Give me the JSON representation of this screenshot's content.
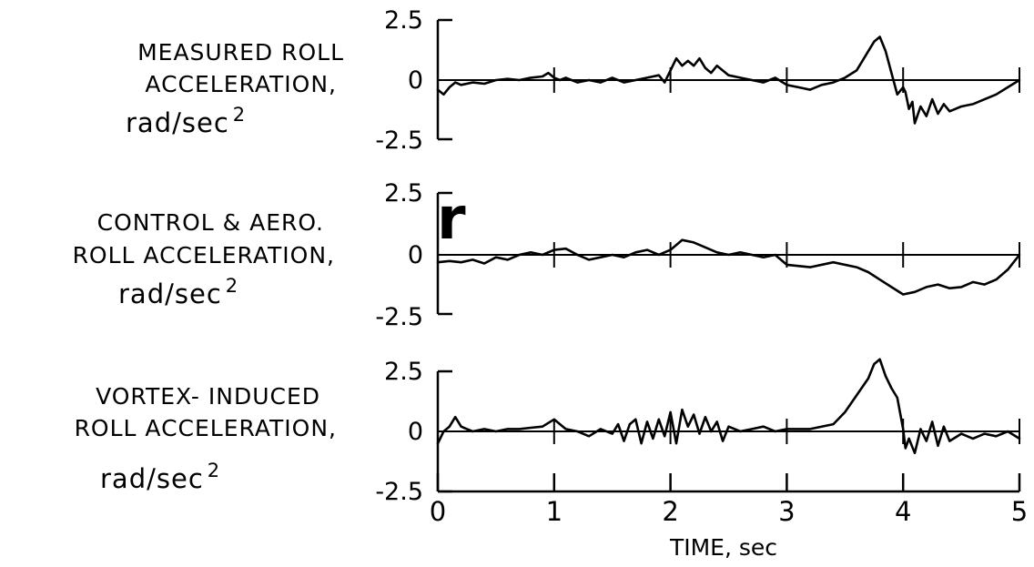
{
  "chart_data": [
    {
      "type": "line",
      "panel": "measured",
      "label_lines": [
        "MEASURED ROLL",
        "ACCELERATION,"
      ],
      "unit": "rad/sec",
      "unit_exponent": "2",
      "yticks": [
        "2.5",
        "0",
        "-2.5"
      ],
      "ylim": [
        -2.5,
        2.5
      ],
      "xlim": [
        0,
        5
      ],
      "series": [
        {
          "x": [
            0,
            0.05,
            0.1,
            0.15,
            0.2,
            0.3,
            0.4,
            0.5,
            0.6,
            0.7,
            0.8,
            0.9,
            0.95,
            1.0,
            1.05,
            1.1,
            1.2,
            1.3,
            1.4,
            1.5,
            1.6,
            1.7,
            1.8,
            1.9,
            1.95,
            2.0,
            2.05,
            2.1,
            2.15,
            2.2,
            2.25,
            2.3,
            2.35,
            2.4,
            2.5,
            2.6,
            2.7,
            2.8,
            2.9,
            3.0,
            3.1,
            3.2,
            3.3,
            3.4,
            3.5,
            3.6,
            3.65,
            3.7,
            3.75,
            3.8,
            3.85,
            3.9,
            3.95,
            4.0,
            4.02,
            4.05,
            4.08,
            4.1,
            4.15,
            4.2,
            4.25,
            4.3,
            4.35,
            4.4,
            4.5,
            4.6,
            4.7,
            4.8,
            4.9,
            5.0
          ],
          "y": [
            -0.4,
            -0.6,
            -0.3,
            -0.1,
            -0.2,
            -0.1,
            -0.15,
            0.0,
            0.05,
            0.0,
            0.1,
            0.15,
            0.3,
            0.1,
            0.0,
            0.1,
            -0.1,
            0.0,
            -0.1,
            0.1,
            -0.1,
            0.0,
            0.1,
            0.2,
            -0.1,
            0.4,
            0.9,
            0.6,
            0.8,
            0.6,
            0.9,
            0.5,
            0.3,
            0.6,
            0.2,
            0.1,
            0.0,
            -0.1,
            0.1,
            -0.2,
            -0.3,
            -0.4,
            -0.2,
            -0.1,
            0.1,
            0.4,
            0.8,
            1.2,
            1.6,
            1.8,
            1.2,
            0.3,
            -0.6,
            -0.3,
            -0.5,
            -1.2,
            -0.9,
            -1.8,
            -1.1,
            -1.5,
            -0.8,
            -1.4,
            -1.0,
            -1.3,
            -1.1,
            -1.0,
            -0.8,
            -0.6,
            -0.3,
            0.0
          ]
        }
      ]
    },
    {
      "type": "line",
      "panel": "control-aero",
      "label_lines": [
        "CONTROL & AERO.",
        "ROLL ACCELERATION,"
      ],
      "unit": "rad/sec",
      "unit_exponent": "2",
      "yticks": [
        "2.5",
        "0",
        "-2.5"
      ],
      "ylim": [
        -2.5,
        2.5
      ],
      "xlim": [
        0,
        5
      ],
      "annotation": "r",
      "series": [
        {
          "x": [
            0,
            0.1,
            0.2,
            0.3,
            0.4,
            0.5,
            0.6,
            0.7,
            0.8,
            0.9,
            1.0,
            1.1,
            1.2,
            1.3,
            1.4,
            1.5,
            1.6,
            1.7,
            1.8,
            1.9,
            2.0,
            2.1,
            2.2,
            2.3,
            2.4,
            2.5,
            2.6,
            2.7,
            2.8,
            2.9,
            3.0,
            3.2,
            3.4,
            3.6,
            3.7,
            3.8,
            3.9,
            4.0,
            4.1,
            4.2,
            4.3,
            4.4,
            4.5,
            4.6,
            4.7,
            4.8,
            4.9,
            5.0
          ],
          "y": [
            -0.3,
            -0.25,
            -0.3,
            -0.2,
            -0.35,
            -0.1,
            -0.2,
            0.0,
            0.1,
            0.0,
            0.2,
            0.25,
            0.0,
            -0.2,
            -0.1,
            0.0,
            -0.1,
            0.1,
            0.2,
            0.0,
            0.2,
            0.6,
            0.5,
            0.3,
            0.1,
            0.0,
            0.1,
            0.0,
            -0.1,
            0.0,
            -0.4,
            -0.5,
            -0.3,
            -0.5,
            -0.7,
            -1.0,
            -1.3,
            -1.6,
            -1.5,
            -1.3,
            -1.2,
            -1.35,
            -1.3,
            -1.1,
            -1.2,
            -1.0,
            -0.6,
            0.0
          ]
        }
      ]
    },
    {
      "type": "line",
      "panel": "vortex",
      "label_lines": [
        "VORTEX- INDUCED",
        "ROLL ACCELERATION,"
      ],
      "unit": "rad/sec",
      "unit_exponent": "2",
      "yticks": [
        "2.5",
        "0",
        "-2.5"
      ],
      "ylim": [
        -2.5,
        2.5
      ],
      "xlim": [
        0,
        5
      ],
      "xticks": [
        "0",
        "1",
        "2",
        "3",
        "4",
        "5"
      ],
      "xlabel": "TIME, sec",
      "series": [
        {
          "x": [
            0,
            0.05,
            0.1,
            0.15,
            0.2,
            0.25,
            0.3,
            0.4,
            0.5,
            0.6,
            0.7,
            0.8,
            0.9,
            1.0,
            1.05,
            1.1,
            1.2,
            1.3,
            1.4,
            1.5,
            1.55,
            1.6,
            1.65,
            1.7,
            1.75,
            1.8,
            1.85,
            1.9,
            1.95,
            2.0,
            2.05,
            2.1,
            2.15,
            2.2,
            2.25,
            2.3,
            2.35,
            2.4,
            2.45,
            2.5,
            2.6,
            2.7,
            2.8,
            2.9,
            3.0,
            3.2,
            3.4,
            3.5,
            3.6,
            3.7,
            3.75,
            3.8,
            3.85,
            3.9,
            3.95,
            4.0,
            4.02,
            4.05,
            4.1,
            4.15,
            4.2,
            4.25,
            4.3,
            4.35,
            4.4,
            4.5,
            4.6,
            4.7,
            4.8,
            4.9,
            5.0
          ],
          "y": [
            -0.5,
            0.0,
            0.2,
            0.6,
            0.2,
            0.1,
            0.0,
            0.1,
            0.0,
            0.1,
            0.1,
            0.15,
            0.2,
            0.5,
            0.3,
            0.1,
            0.0,
            -0.2,
            0.1,
            -0.1,
            0.3,
            -0.4,
            0.3,
            0.5,
            -0.5,
            0.4,
            -0.3,
            0.5,
            -0.2,
            0.8,
            -0.5,
            0.9,
            0.2,
            0.7,
            -0.1,
            0.6,
            0.0,
            0.4,
            -0.4,
            0.2,
            0.0,
            0.1,
            0.2,
            0.0,
            0.1,
            0.1,
            0.3,
            0.8,
            1.5,
            2.2,
            2.8,
            3.0,
            2.3,
            1.8,
            1.4,
            0.1,
            -0.7,
            -0.3,
            -0.9,
            0.1,
            -0.4,
            0.4,
            -0.6,
            0.2,
            -0.4,
            -0.1,
            -0.3,
            -0.1,
            -0.2,
            0.0,
            -0.3
          ]
        }
      ]
    }
  ]
}
